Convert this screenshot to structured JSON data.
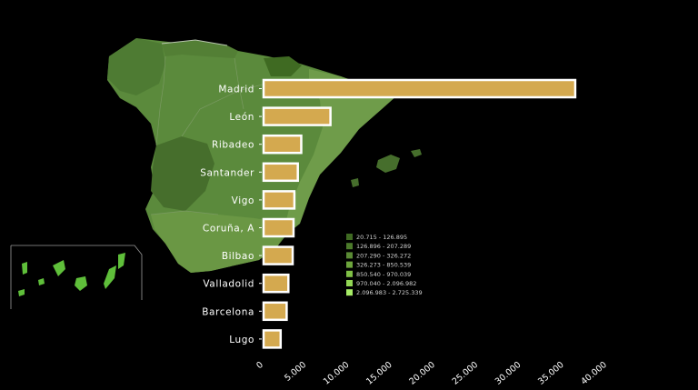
{
  "chart_data": {
    "type": "bar",
    "orientation": "horizontal",
    "title": "",
    "xlabel": "",
    "ylabel": "",
    "categories": [
      "Madrid",
      "León",
      "Ribadeo",
      "Santander",
      "Vigo",
      "Coruña, A",
      "Bilbao",
      "Valladolid",
      "Barcelona",
      "Lugo"
    ],
    "values": [
      36500,
      8000,
      4600,
      4200,
      3800,
      3700,
      3600,
      3100,
      2900,
      2200
    ],
    "xlim": [
      0,
      40000
    ],
    "xticks": [
      "0",
      "5.000",
      "10.000",
      "15.000",
      "20.000",
      "25.000",
      "30.000",
      "35.000",
      "40.000"
    ],
    "grid": false,
    "bar_color": "#d4a94f",
    "bar_outline": "#ffffff"
  },
  "map_legend": {
    "items": [
      {
        "label": "20.715  -  126.895",
        "color": "#3f6a22"
      },
      {
        "label": "126.896  -  207.289",
        "color": "#4b7a2a"
      },
      {
        "label": "207.290  -  326.272",
        "color": "#5a8a34"
      },
      {
        "label": "326.273  -  850.539",
        "color": "#6da53c"
      },
      {
        "label": "850.540  -  970.039",
        "color": "#7fbf45"
      },
      {
        "label": "970.040  - 2.096.982",
        "color": "#92d654"
      },
      {
        "label": "2.096.983 - 2.725.339",
        "color": "#a6ec66"
      }
    ]
  },
  "colors": {
    "background": "#000000",
    "map_base": "#5b8a3c",
    "map_dark": "#466e2c",
    "map_light": "#6f9c4a",
    "canary_green": "#5fbf3a"
  }
}
